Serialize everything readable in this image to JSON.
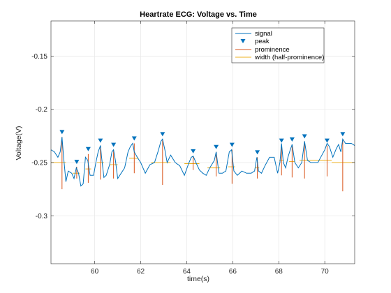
{
  "chart_data": {
    "type": "line",
    "title": "Heartrate ECG: Voltage vs. Time",
    "xlabel": "time(s)",
    "ylabel": "Voltage(V)",
    "xlim": [
      58.1,
      71.3
    ],
    "ylim": [
      -0.345,
      -0.117
    ],
    "x_ticks": [
      60,
      62,
      64,
      66,
      68,
      70
    ],
    "y_ticks": [
      -0.3,
      -0.25,
      -0.2,
      -0.15
    ],
    "x_tick_labels": [
      "60",
      "62",
      "64",
      "66",
      "68",
      "70"
    ],
    "y_tick_labels": [
      "-0.3",
      "-0.25",
      "-0.2",
      "-0.15"
    ],
    "grid": true,
    "legend_position": "top-right",
    "colors": {
      "signal": "#0072BD",
      "peak": "#0072BD",
      "prominence": "#D95319",
      "width": "#EDB120"
    },
    "legend": [
      {
        "label": "signal",
        "marker": "line",
        "color": "#0072BD"
      },
      {
        "label": "peak",
        "marker": "triangle-down",
        "color": "#0072BD"
      },
      {
        "label": "prominence",
        "marker": "line",
        "color": "#D95319"
      },
      {
        "label": "width (half-prominence)",
        "marker": "line",
        "color": "#EDB120"
      }
    ],
    "signal": {
      "x": [
        58.1,
        58.25,
        58.4,
        58.5,
        58.58,
        58.65,
        58.75,
        58.85,
        59.0,
        59.1,
        59.2,
        59.3,
        59.4,
        59.5,
        59.6,
        59.7,
        59.8,
        59.95,
        60.05,
        60.15,
        60.25,
        60.3,
        60.4,
        60.5,
        60.65,
        60.75,
        60.82,
        60.9,
        61.0,
        61.15,
        61.3,
        61.45,
        61.55,
        61.65,
        61.72,
        61.85,
        62.0,
        62.2,
        62.4,
        62.6,
        62.75,
        62.88,
        62.95,
        63.05,
        63.15,
        63.3,
        63.5,
        63.7,
        63.9,
        64.1,
        64.2,
        64.28,
        64.4,
        64.55,
        64.7,
        64.85,
        65.0,
        65.2,
        65.28,
        65.4,
        65.55,
        65.7,
        65.85,
        65.95,
        66.05,
        66.2,
        66.4,
        66.6,
        66.8,
        66.95,
        67.05,
        67.12,
        67.25,
        67.4,
        67.6,
        67.8,
        67.95,
        68.05,
        68.12,
        68.2,
        68.3,
        68.4,
        68.5,
        68.58,
        68.7,
        68.85,
        69.0,
        69.12,
        69.25,
        69.4,
        69.55,
        69.7,
        69.85,
        70.0,
        70.1,
        70.2,
        70.35,
        70.5,
        70.6,
        70.7,
        70.78,
        70.9,
        71.0,
        71.15,
        71.3
      ],
      "y": [
        -0.238,
        -0.24,
        -0.245,
        -0.24,
        -0.226,
        -0.245,
        -0.268,
        -0.258,
        -0.26,
        -0.265,
        -0.255,
        -0.26,
        -0.272,
        -0.27,
        -0.245,
        -0.248,
        -0.262,
        -0.262,
        -0.25,
        -0.24,
        -0.234,
        -0.245,
        -0.264,
        -0.262,
        -0.252,
        -0.24,
        -0.238,
        -0.248,
        -0.265,
        -0.26,
        -0.255,
        -0.24,
        -0.235,
        -0.232,
        -0.24,
        -0.245,
        -0.25,
        -0.26,
        -0.252,
        -0.25,
        -0.24,
        -0.23,
        -0.228,
        -0.238,
        -0.25,
        -0.243,
        -0.25,
        -0.253,
        -0.262,
        -0.25,
        -0.245,
        -0.244,
        -0.25,
        -0.257,
        -0.26,
        -0.262,
        -0.255,
        -0.248,
        -0.24,
        -0.26,
        -0.26,
        -0.258,
        -0.24,
        -0.238,
        -0.258,
        -0.262,
        -0.258,
        -0.26,
        -0.26,
        -0.258,
        -0.245,
        -0.258,
        -0.26,
        -0.253,
        -0.245,
        -0.245,
        -0.26,
        -0.25,
        -0.232,
        -0.25,
        -0.255,
        -0.245,
        -0.238,
        -0.233,
        -0.25,
        -0.255,
        -0.25,
        -0.23,
        -0.248,
        -0.25,
        -0.25,
        -0.25,
        -0.244,
        -0.238,
        -0.232,
        -0.235,
        -0.245,
        -0.237,
        -0.233,
        -0.24,
        -0.228,
        -0.232,
        -0.232,
        -0.232,
        -0.234
      ]
    },
    "peaks": {
      "x": [
        58.58,
        59.22,
        59.72,
        60.25,
        60.82,
        61.72,
        62.95,
        64.28,
        65.28,
        65.97,
        67.07,
        68.12,
        68.58,
        69.12,
        70.1,
        70.78
      ],
      "y": [
        -0.226,
        -0.254,
        -0.242,
        -0.234,
        -0.238,
        -0.232,
        -0.228,
        -0.244,
        -0.24,
        -0.238,
        -0.245,
        -0.234,
        -0.233,
        -0.23,
        -0.234,
        -0.228
      ]
    },
    "prominence": {
      "x": [
        58.58,
        59.22,
        59.72,
        60.25,
        60.82,
        61.72,
        62.95,
        64.28,
        65.28,
        65.97,
        67.07,
        68.12,
        68.58,
        69.12,
        70.1,
        70.78
      ],
      "y_bottom": [
        -0.275,
        -0.265,
        -0.269,
        -0.266,
        -0.265,
        -0.26,
        -0.271,
        -0.257,
        -0.263,
        -0.27,
        -0.265,
        -0.262,
        -0.264,
        -0.265,
        -0.263,
        -0.277
      ]
    },
    "widths": [
      {
        "x_start": 58.1,
        "x_end": 58.75,
        "y": -0.25
      },
      {
        "x_start": 59.05,
        "x_end": 59.35,
        "y": -0.26
      },
      {
        "x_start": 59.6,
        "x_end": 59.85,
        "y": -0.256
      },
      {
        "x_start": 60.1,
        "x_end": 60.4,
        "y": -0.25
      },
      {
        "x_start": 60.65,
        "x_end": 61.0,
        "y": -0.252
      },
      {
        "x_start": 61.5,
        "x_end": 61.9,
        "y": -0.246
      },
      {
        "x_start": 62.45,
        "x_end": 63.3,
        "y": -0.25
      },
      {
        "x_start": 63.9,
        "x_end": 64.55,
        "y": -0.251
      },
      {
        "x_start": 64.9,
        "x_end": 65.45,
        "y": -0.255
      },
      {
        "x_start": 65.8,
        "x_end": 66.1,
        "y": -0.254
      },
      {
        "x_start": 66.98,
        "x_end": 67.15,
        "y": -0.255
      },
      {
        "x_start": 68.02,
        "x_end": 68.22,
        "y": -0.248
      },
      {
        "x_start": 68.45,
        "x_end": 68.68,
        "y": -0.249
      },
      {
        "x_start": 68.9,
        "x_end": 69.35,
        "y": -0.248
      },
      {
        "x_start": 69.35,
        "x_end": 70.3,
        "y": -0.248
      },
      {
        "x_start": 70.3,
        "x_end": 71.3,
        "y": -0.25
      }
    ]
  }
}
